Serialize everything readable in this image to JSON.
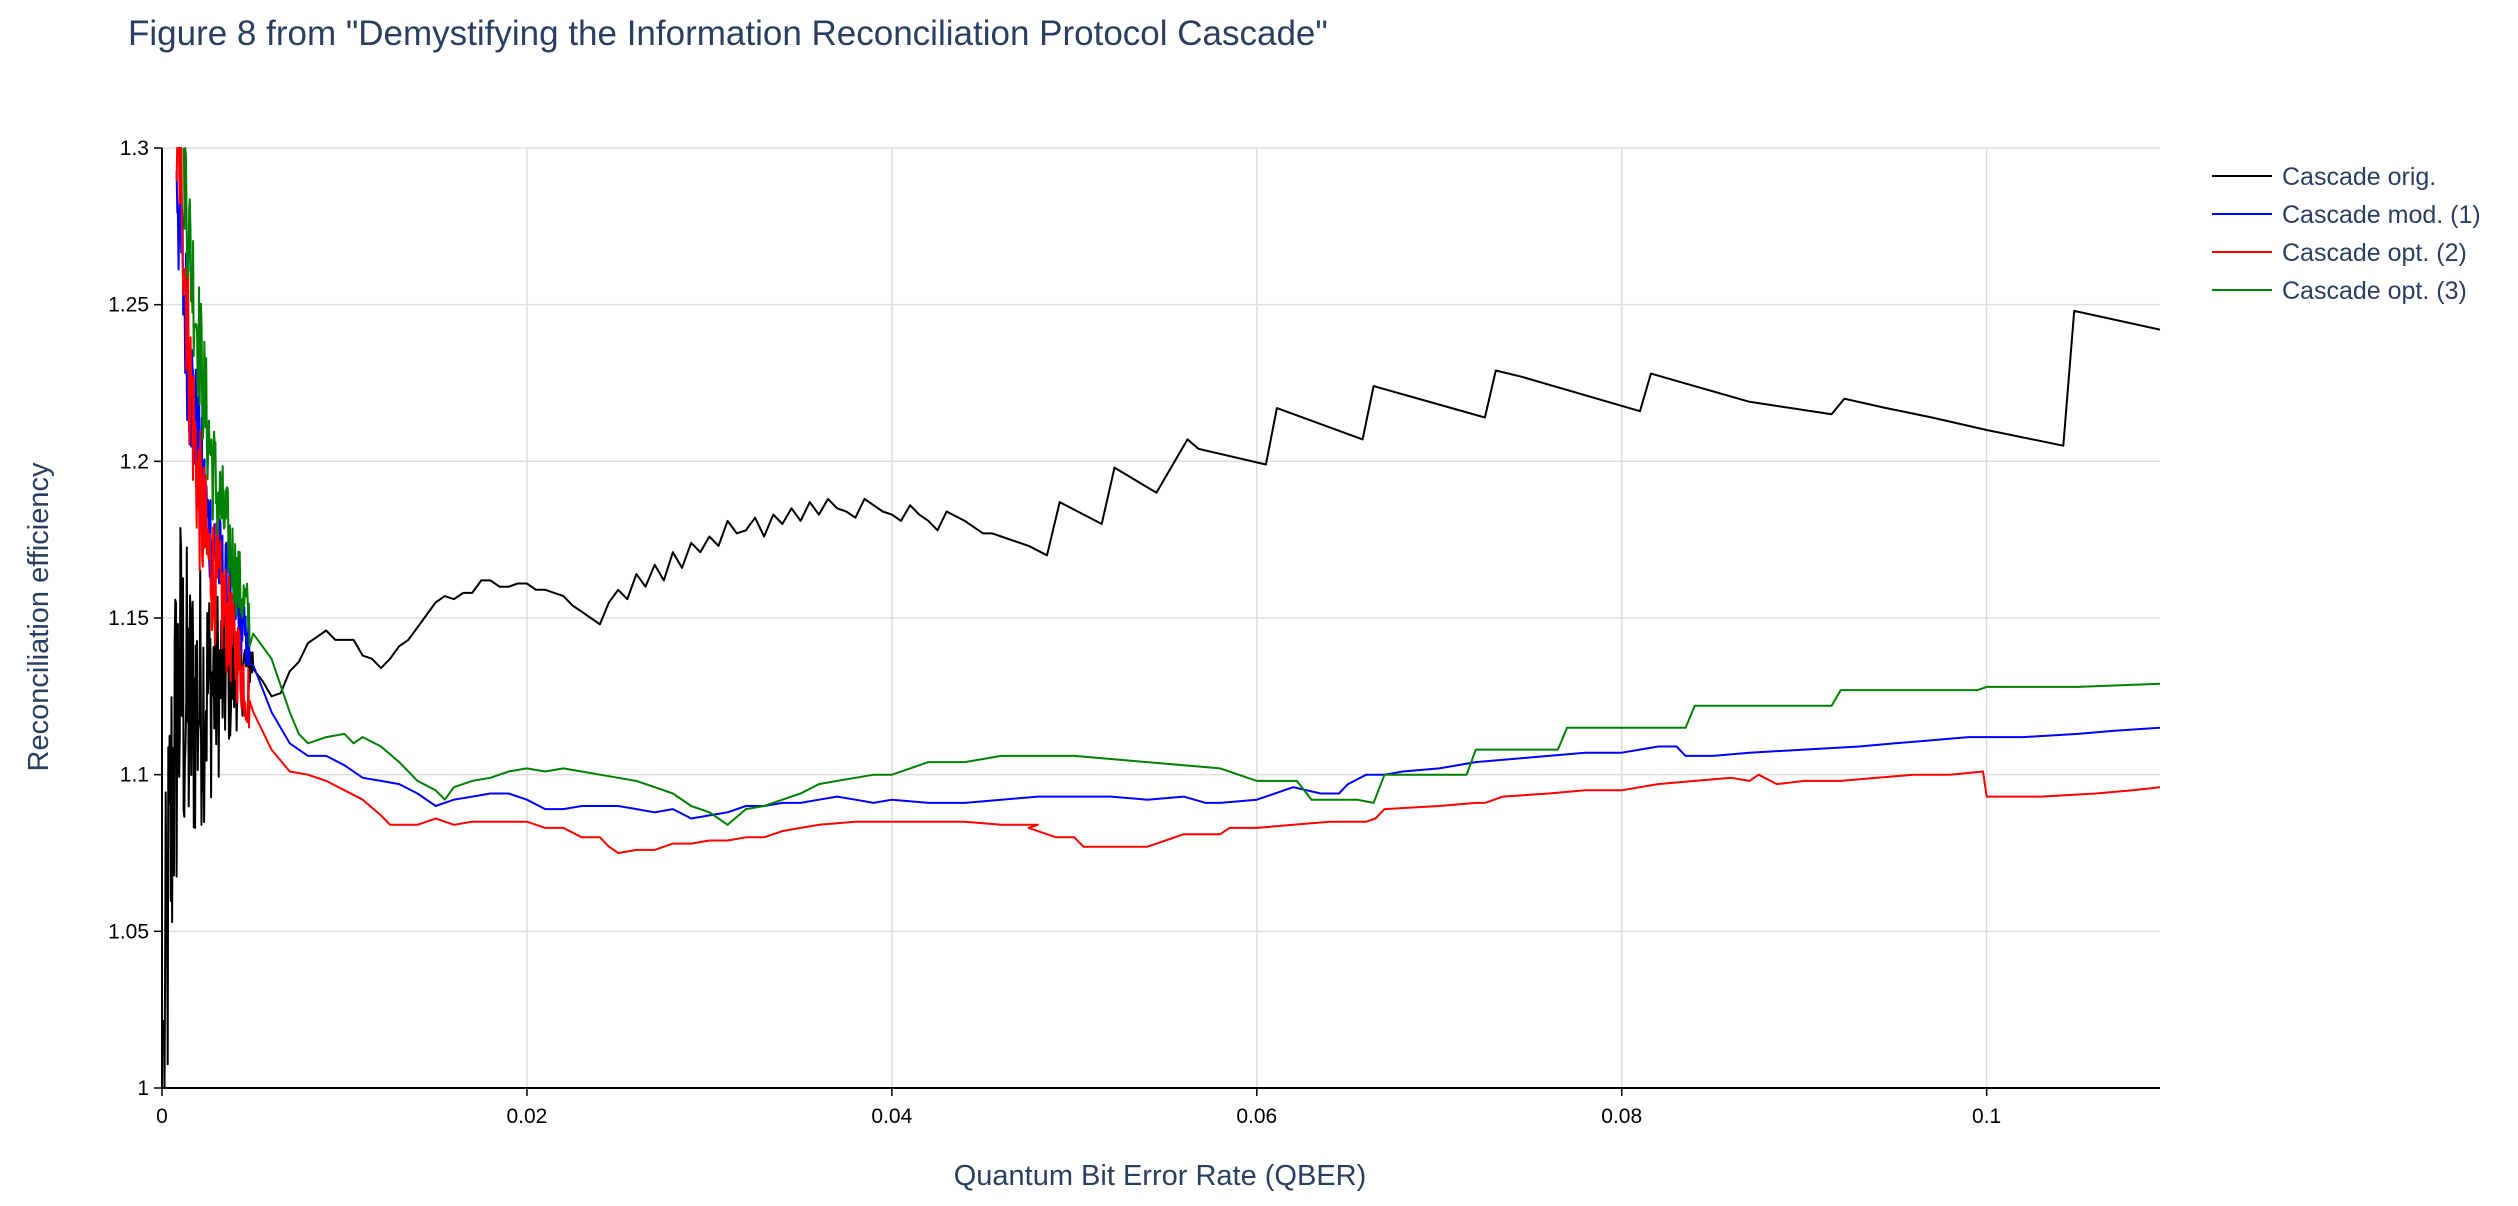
{
  "chart_data": {
    "type": "line",
    "title": "Figure 8 from \"Demystifying the Information Reconciliation Protocol Cascade\"",
    "xlabel": "Quantum Bit Error Rate (QBER)",
    "ylabel": "Reconciliation efficiency",
    "xlim": [
      0,
      0.1095
    ],
    "ylim": [
      1.0,
      1.3
    ],
    "xticks": [
      0,
      0.02,
      0.04,
      0.06,
      0.08,
      0.1
    ],
    "xtick_labels": [
      "0",
      "0.02",
      "0.04",
      "0.06",
      "0.08",
      "0.1"
    ],
    "yticks": [
      1,
      1.05,
      1.1,
      1.15,
      1.2,
      1.25,
      1.3
    ],
    "ytick_labels": [
      "1",
      "1.05",
      "1.1",
      "1.15",
      "1.2",
      "1.25",
      "1.3"
    ],
    "grid": true,
    "legend_position": "top-right",
    "series": [
      {
        "name": "Cascade orig.",
        "color": "#000000",
        "noise": {
          "x_start": 0.0001,
          "x_end": 0.005,
          "amp_start": 0.07,
          "amp_end": 0.008,
          "points": 140
        },
        "x": [
          0.0001,
          0.0003,
          0.0006,
          0.001,
          0.0015,
          0.002,
          0.003,
          0.004,
          0.005,
          0.0055,
          0.006,
          0.0065,
          0.007,
          0.0075,
          0.008,
          0.0085,
          0.009,
          0.0095,
          0.01,
          0.0105,
          0.011,
          0.0115,
          0.012,
          0.0125,
          0.013,
          0.0135,
          0.014,
          0.0145,
          0.015,
          0.0155,
          0.016,
          0.0165,
          0.017,
          0.0175,
          0.018,
          0.0185,
          0.019,
          0.0195,
          0.02,
          0.0205,
          0.021,
          0.0215,
          0.022,
          0.0225,
          0.023,
          0.0235,
          0.024,
          0.0245,
          0.025,
          0.0255,
          0.026,
          0.0265,
          0.027,
          0.0275,
          0.028,
          0.0285,
          0.029,
          0.0295,
          0.03,
          0.0305,
          0.031,
          0.0315,
          0.032,
          0.0325,
          0.033,
          0.0335,
          0.034,
          0.0345,
          0.035,
          0.0355,
          0.036,
          0.0365,
          0.037,
          0.0375,
          0.038,
          0.0385,
          0.039,
          0.0395,
          0.04,
          0.0405,
          0.041,
          0.0415,
          0.042,
          0.0425,
          0.043,
          0.044,
          0.045,
          0.0455,
          0.046,
          0.0475,
          0.0485,
          0.0492,
          0.0515,
          0.0522,
          0.0545,
          0.0562,
          0.0568,
          0.0605,
          0.0611,
          0.0658,
          0.0664,
          0.0725,
          0.0731,
          0.0745,
          0.081,
          0.0816,
          0.087,
          0.0915,
          0.0922,
          0.0945,
          0.097,
          0.1,
          0.1042,
          0.1048,
          0.1095
        ],
        "y": [
          1.0,
          1.05,
          1.1,
          1.13,
          1.118,
          1.125,
          1.13,
          1.133,
          1.136,
          1.13,
          1.125,
          1.126,
          1.133,
          1.136,
          1.142,
          1.144,
          1.146,
          1.143,
          1.143,
          1.143,
          1.138,
          1.137,
          1.134,
          1.137,
          1.141,
          1.143,
          1.147,
          1.151,
          1.155,
          1.157,
          1.156,
          1.158,
          1.158,
          1.162,
          1.162,
          1.16,
          1.16,
          1.161,
          1.161,
          1.159,
          1.159,
          1.158,
          1.157,
          1.154,
          1.152,
          1.15,
          1.148,
          1.155,
          1.159,
          1.156,
          1.164,
          1.16,
          1.167,
          1.162,
          1.171,
          1.166,
          1.174,
          1.171,
          1.176,
          1.173,
          1.181,
          1.177,
          1.178,
          1.182,
          1.176,
          1.183,
          1.18,
          1.185,
          1.181,
          1.187,
          1.183,
          1.188,
          1.185,
          1.184,
          1.182,
          1.188,
          1.186,
          1.184,
          1.183,
          1.181,
          1.186,
          1.183,
          1.181,
          1.178,
          1.184,
          1.181,
          1.177,
          1.177,
          1.176,
          1.173,
          1.17,
          1.187,
          1.18,
          1.198,
          1.19,
          1.207,
          1.204,
          1.199,
          1.217,
          1.207,
          1.224,
          1.214,
          1.229,
          1.227,
          1.216,
          1.228,
          1.219,
          1.215,
          1.22,
          1.217,
          1.214,
          1.21,
          1.205,
          1.248,
          1.242
        ]
      },
      {
        "name": "Cascade mod. (1)",
        "color": "#0000ff",
        "noise": {
          "x_start": 0.0008,
          "x_end": 0.0048,
          "amp_start": 0.03,
          "amp_end": 0.008,
          "points": 110
        },
        "x": [
          0.0008,
          0.001,
          0.0015,
          0.002,
          0.0025,
          0.003,
          0.0035,
          0.004,
          0.0045,
          0.005,
          0.006,
          0.007,
          0.008,
          0.009,
          0.01,
          0.011,
          0.012,
          0.013,
          0.014,
          0.015,
          0.016,
          0.017,
          0.018,
          0.019,
          0.02,
          0.021,
          0.022,
          0.023,
          0.024,
          0.025,
          0.026,
          0.027,
          0.028,
          0.029,
          0.03,
          0.031,
          0.032,
          0.033,
          0.034,
          0.035,
          0.036,
          0.037,
          0.038,
          0.039,
          0.04,
          0.042,
          0.044,
          0.046,
          0.048,
          0.05,
          0.052,
          0.054,
          0.056,
          0.0572,
          0.058,
          0.06,
          0.062,
          0.0635,
          0.0645,
          0.065,
          0.066,
          0.067,
          0.068,
          0.07,
          0.072,
          0.074,
          0.076,
          0.078,
          0.08,
          0.082,
          0.083,
          0.0835,
          0.085,
          0.087,
          0.09,
          0.093,
          0.095,
          0.097,
          0.099,
          0.1,
          0.102,
          0.105,
          0.107,
          0.1095
        ],
        "y": [
          1.3,
          1.27,
          1.23,
          1.2,
          1.18,
          1.17,
          1.16,
          1.155,
          1.145,
          1.135,
          1.12,
          1.11,
          1.106,
          1.106,
          1.103,
          1.099,
          1.098,
          1.097,
          1.094,
          1.09,
          1.092,
          1.093,
          1.094,
          1.094,
          1.092,
          1.089,
          1.089,
          1.09,
          1.09,
          1.09,
          1.089,
          1.088,
          1.089,
          1.086,
          1.087,
          1.088,
          1.09,
          1.09,
          1.091,
          1.091,
          1.092,
          1.093,
          1.092,
          1.091,
          1.092,
          1.091,
          1.091,
          1.092,
          1.093,
          1.093,
          1.093,
          1.092,
          1.093,
          1.091,
          1.091,
          1.092,
          1.096,
          1.094,
          1.094,
          1.097,
          1.1,
          1.1,
          1.101,
          1.102,
          1.104,
          1.105,
          1.106,
          1.107,
          1.107,
          1.109,
          1.109,
          1.106,
          1.106,
          1.107,
          1.108,
          1.109,
          1.11,
          1.111,
          1.112,
          1.112,
          1.112,
          1.113,
          1.114,
          1.115
        ]
      },
      {
        "name": "Cascade opt. (2)",
        "color": "#ff0000",
        "noise": {
          "x_start": 0.0008,
          "x_end": 0.0048,
          "amp_start": 0.03,
          "amp_end": 0.012,
          "points": 120
        },
        "x": [
          0.0008,
          0.001,
          0.0015,
          0.002,
          0.0025,
          0.003,
          0.0035,
          0.004,
          0.0045,
          0.005,
          0.006,
          0.007,
          0.008,
          0.009,
          0.01,
          0.011,
          0.012,
          0.0125,
          0.013,
          0.014,
          0.015,
          0.016,
          0.017,
          0.018,
          0.019,
          0.02,
          0.021,
          0.022,
          0.023,
          0.024,
          0.0245,
          0.025,
          0.026,
          0.027,
          0.028,
          0.029,
          0.03,
          0.031,
          0.032,
          0.033,
          0.034,
          0.035,
          0.036,
          0.038,
          0.04,
          0.042,
          0.044,
          0.046,
          0.047,
          0.048,
          0.0475,
          0.049,
          0.05,
          0.0505,
          0.052,
          0.054,
          0.055,
          0.056,
          0.058,
          0.0585,
          0.06,
          0.062,
          0.064,
          0.066,
          0.0665,
          0.067,
          0.07,
          0.072,
          0.0725,
          0.0735,
          0.076,
          0.078,
          0.08,
          0.082,
          0.084,
          0.086,
          0.087,
          0.0875,
          0.0885,
          0.09,
          0.092,
          0.094,
          0.096,
          0.098,
          0.0998,
          0.1,
          0.103,
          0.106,
          0.108,
          0.1095
        ],
        "y": [
          1.3,
          1.3,
          1.23,
          1.19,
          1.17,
          1.16,
          1.15,
          1.14,
          1.13,
          1.12,
          1.108,
          1.101,
          1.1,
          1.098,
          1.095,
          1.092,
          1.087,
          1.084,
          1.084,
          1.084,
          1.086,
          1.084,
          1.085,
          1.085,
          1.085,
          1.085,
          1.083,
          1.083,
          1.08,
          1.08,
          1.077,
          1.075,
          1.076,
          1.076,
          1.078,
          1.078,
          1.079,
          1.079,
          1.08,
          1.08,
          1.082,
          1.083,
          1.084,
          1.085,
          1.085,
          1.085,
          1.085,
          1.084,
          1.084,
          1.084,
          1.083,
          1.08,
          1.08,
          1.077,
          1.077,
          1.077,
          1.079,
          1.081,
          1.081,
          1.083,
          1.083,
          1.084,
          1.085,
          1.085,
          1.086,
          1.089,
          1.09,
          1.091,
          1.091,
          1.093,
          1.094,
          1.095,
          1.095,
          1.097,
          1.098,
          1.099,
          1.098,
          1.1,
          1.097,
          1.098,
          1.098,
          1.099,
          1.1,
          1.1,
          1.101,
          1.093,
          1.093,
          1.094,
          1.095,
          1.096
        ]
      },
      {
        "name": "Cascade opt. (3)",
        "color": "#008000",
        "noise": {
          "x_start": 0.0012,
          "x_end": 0.0048,
          "amp_start": 0.025,
          "amp_end": 0.01,
          "points": 100
        },
        "x": [
          0.0012,
          0.0015,
          0.002,
          0.0025,
          0.003,
          0.0035,
          0.004,
          0.0045,
          0.005,
          0.006,
          0.007,
          0.0075,
          0.008,
          0.009,
          0.01,
          0.0105,
          0.011,
          0.012,
          0.013,
          0.014,
          0.015,
          0.0155,
          0.016,
          0.017,
          0.018,
          0.019,
          0.02,
          0.021,
          0.022,
          0.023,
          0.024,
          0.025,
          0.026,
          0.027,
          0.028,
          0.029,
          0.03,
          0.0305,
          0.031,
          0.032,
          0.033,
          0.034,
          0.035,
          0.036,
          0.037,
          0.038,
          0.039,
          0.04,
          0.041,
          0.042,
          0.043,
          0.044,
          0.045,
          0.046,
          0.047,
          0.048,
          0.05,
          0.052,
          0.054,
          0.056,
          0.058,
          0.06,
          0.0622,
          0.063,
          0.0655,
          0.0664,
          0.067,
          0.0715,
          0.072,
          0.0765,
          0.077,
          0.0835,
          0.084,
          0.0915,
          0.092,
          0.0995,
          0.1,
          0.105,
          0.1095
        ],
        "y": [
          1.3,
          1.27,
          1.24,
          1.21,
          1.19,
          1.18,
          1.165,
          1.155,
          1.145,
          1.137,
          1.12,
          1.113,
          1.11,
          1.112,
          1.113,
          1.11,
          1.112,
          1.109,
          1.104,
          1.098,
          1.095,
          1.092,
          1.096,
          1.098,
          1.099,
          1.101,
          1.102,
          1.101,
          1.102,
          1.101,
          1.1,
          1.099,
          1.098,
          1.096,
          1.094,
          1.09,
          1.088,
          1.086,
          1.084,
          1.089,
          1.09,
          1.092,
          1.094,
          1.097,
          1.098,
          1.099,
          1.1,
          1.1,
          1.102,
          1.104,
          1.104,
          1.104,
          1.105,
          1.106,
          1.106,
          1.106,
          1.106,
          1.105,
          1.104,
          1.103,
          1.102,
          1.098,
          1.098,
          1.092,
          1.092,
          1.091,
          1.1,
          1.1,
          1.108,
          1.108,
          1.115,
          1.115,
          1.122,
          1.122,
          1.127,
          1.127,
          1.128,
          1.128,
          1.129
        ]
      }
    ]
  }
}
